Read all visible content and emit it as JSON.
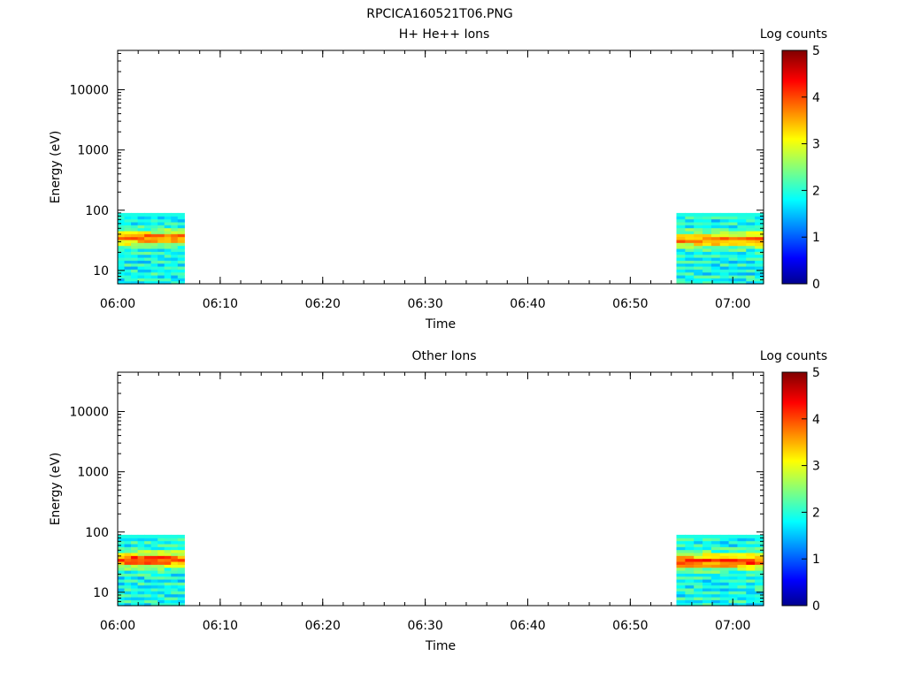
{
  "figure_title": "RPCICA160521T06.PNG",
  "chart_data": [
    {
      "type": "heatmap",
      "title": "H+ He++ Ions",
      "xlabel": "Time",
      "ylabel": "Energy (eV)",
      "yscale": "log",
      "x_range": [
        "06:00",
        "07:03"
      ],
      "ylim": [
        6,
        45000
      ],
      "x_ticks": [
        "06:00",
        "06:10",
        "06:20",
        "06:30",
        "06:40",
        "06:50",
        "07:00"
      ],
      "y_ticks": [
        "10",
        "100",
        "1000",
        "10000"
      ],
      "colorbar": {
        "label": "Log counts",
        "range": [
          0,
          5
        ],
        "ticks": [
          "0",
          "1",
          "2",
          "3",
          "4",
          "5"
        ]
      },
      "data_blocks": [
        {
          "t_start": "06:00",
          "t_end": "06:06.5",
          "energy_range": [
            6,
            90
          ],
          "peak_energy": 35,
          "peak_log_counts": 4.0
        },
        {
          "t_start": "06:54.5",
          "t_end": "07:03",
          "energy_range": [
            6,
            90
          ],
          "peak_energy": 33,
          "peak_log_counts": 4.0
        }
      ],
      "grid": false
    },
    {
      "type": "heatmap",
      "title": "Other Ions",
      "xlabel": "Time",
      "ylabel": "Energy (eV)",
      "yscale": "log",
      "x_range": [
        "06:00",
        "07:03"
      ],
      "ylim": [
        6,
        45000
      ],
      "x_ticks": [
        "06:00",
        "06:10",
        "06:20",
        "06:30",
        "06:40",
        "06:50",
        "07:00"
      ],
      "y_ticks": [
        "10",
        "100",
        "1000",
        "10000"
      ],
      "colorbar": {
        "label": "Log counts",
        "range": [
          0,
          5
        ],
        "ticks": [
          "0",
          "1",
          "2",
          "3",
          "4",
          "5"
        ]
      },
      "data_blocks": [
        {
          "t_start": "06:00",
          "t_end": "06:06.5",
          "energy_range": [
            6,
            90
          ],
          "peak_energy": 35,
          "peak_log_counts": 4.3
        },
        {
          "t_start": "06:54.5",
          "t_end": "07:03",
          "energy_range": [
            6,
            90
          ],
          "peak_energy": 33,
          "peak_log_counts": 4.3
        }
      ],
      "grid": false
    }
  ]
}
